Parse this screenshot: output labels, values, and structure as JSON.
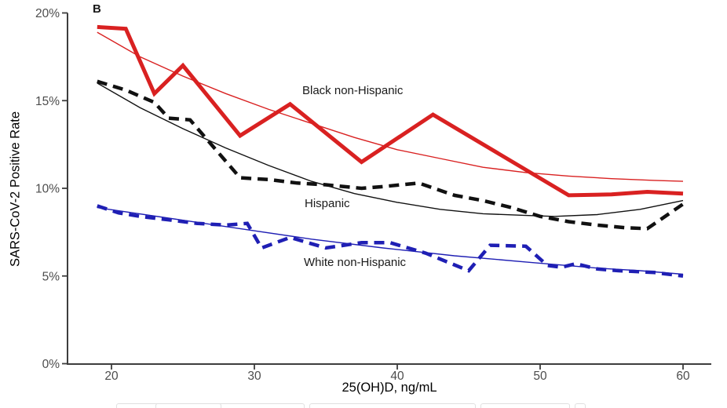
{
  "figure": {
    "panel_label": "B"
  },
  "chart_data": {
    "type": "line",
    "title": "",
    "xlabel": "25(OH)D, ng/mL",
    "ylabel": "SARS-CoV-2 Positive Rate",
    "xlim": [
      17,
      62
    ],
    "ylim": [
      0,
      20
    ],
    "grid": "off",
    "legend_position": "inline-annotations",
    "x_ticks": [
      {
        "value": 20,
        "label": "20"
      },
      {
        "value": 30,
        "label": "30"
      },
      {
        "value": 40,
        "label": "40"
      },
      {
        "value": 50,
        "label": "50"
      },
      {
        "value": 60,
        "label": "60"
      }
    ],
    "y_ticks": [
      {
        "value": 0,
        "label": "0%"
      },
      {
        "value": 5,
        "label": "5%"
      },
      {
        "value": 10,
        "label": "10%"
      },
      {
        "value": 15,
        "label": "15%"
      },
      {
        "value": 20,
        "label": "20%"
      }
    ],
    "annotations": [
      {
        "text": "Black non-Hispanic",
        "color": "#1a1a1a"
      },
      {
        "text": "Hispanic",
        "color": "#1a1a1a"
      },
      {
        "text": "White non-Hispanic",
        "color": "#1a1a1a"
      }
    ],
    "series": [
      {
        "id": "black-non-hispanic",
        "name": "Black non-Hispanic",
        "role": "data",
        "color": "#d92121",
        "line_style": "solid",
        "points": [
          [
            19,
            19.2
          ],
          [
            21,
            19.1
          ],
          [
            23,
            15.4
          ],
          [
            25,
            17.0
          ],
          [
            29,
            13.0
          ],
          [
            32.5,
            14.8
          ],
          [
            37.5,
            11.5
          ],
          [
            42.5,
            14.2
          ],
          [
            52,
            9.6
          ],
          [
            55,
            9.65
          ],
          [
            57.5,
            9.8
          ],
          [
            60,
            9.7
          ]
        ]
      },
      {
        "id": "black-non-hispanic-trend",
        "name": "Black non-Hispanic trend",
        "role": "trend",
        "color": "#d92121",
        "line_style": "solid",
        "points": [
          [
            19,
            18.9
          ],
          [
            22,
            17.5
          ],
          [
            25,
            16.4
          ],
          [
            28,
            15.4
          ],
          [
            31,
            14.5
          ],
          [
            34,
            13.7
          ],
          [
            37,
            12.9
          ],
          [
            40,
            12.2
          ],
          [
            43,
            11.7
          ],
          [
            46,
            11.2
          ],
          [
            49,
            10.9
          ],
          [
            52,
            10.7
          ],
          [
            55,
            10.55
          ],
          [
            58,
            10.45
          ],
          [
            60,
            10.4
          ]
        ]
      },
      {
        "id": "hispanic",
        "name": "Hispanic",
        "role": "data",
        "color": "#111111",
        "line_style": "dashed",
        "points": [
          [
            19,
            16.1
          ],
          [
            21,
            15.6
          ],
          [
            23,
            14.9
          ],
          [
            24,
            14.0
          ],
          [
            25.5,
            13.9
          ],
          [
            29,
            10.6
          ],
          [
            31,
            10.5
          ],
          [
            33,
            10.3
          ],
          [
            35,
            10.2
          ],
          [
            37.5,
            10.0
          ],
          [
            39,
            10.1
          ],
          [
            41.5,
            10.3
          ],
          [
            44,
            9.6
          ],
          [
            46,
            9.3
          ],
          [
            48,
            8.9
          ],
          [
            50,
            8.4
          ],
          [
            52,
            8.1
          ],
          [
            54,
            7.9
          ],
          [
            56,
            7.75
          ],
          [
            57.5,
            7.7
          ],
          [
            60,
            9.1
          ]
        ]
      },
      {
        "id": "hispanic-trend",
        "name": "Hispanic trend",
        "role": "trend",
        "color": "#111111",
        "line_style": "solid",
        "points": [
          [
            19,
            16.0
          ],
          [
            22,
            14.6
          ],
          [
            25,
            13.4
          ],
          [
            28,
            12.3
          ],
          [
            31,
            11.3
          ],
          [
            34,
            10.4
          ],
          [
            37,
            9.7
          ],
          [
            40,
            9.2
          ],
          [
            43,
            8.8
          ],
          [
            46,
            8.55
          ],
          [
            49,
            8.45
          ],
          [
            51,
            8.4
          ],
          [
            54,
            8.5
          ],
          [
            57,
            8.8
          ],
          [
            60,
            9.3
          ]
        ]
      },
      {
        "id": "white-non-hispanic",
        "name": "White non-Hispanic",
        "role": "data",
        "color": "#1f1fb4",
        "line_style": "dashed",
        "points": [
          [
            19,
            9.0
          ],
          [
            20.5,
            8.6
          ],
          [
            22,
            8.4
          ],
          [
            24,
            8.2
          ],
          [
            26,
            8.0
          ],
          [
            28,
            7.9
          ],
          [
            29.5,
            8.0
          ],
          [
            30.5,
            6.6
          ],
          [
            32.5,
            7.2
          ],
          [
            35,
            6.6
          ],
          [
            37.5,
            6.9
          ],
          [
            39.5,
            6.9
          ],
          [
            42,
            6.3
          ],
          [
            45,
            5.3
          ],
          [
            46.5,
            6.75
          ],
          [
            49,
            6.7
          ],
          [
            50.5,
            5.6
          ],
          [
            51.5,
            5.5
          ],
          [
            52.5,
            5.7
          ],
          [
            54,
            5.4
          ],
          [
            55.5,
            5.3
          ],
          [
            58,
            5.2
          ],
          [
            60,
            5.0
          ]
        ]
      },
      {
        "id": "white-non-hispanic-trend",
        "name": "White non-Hispanic trend",
        "role": "trend",
        "color": "#1f1fb4",
        "line_style": "solid",
        "points": [
          [
            19,
            8.9
          ],
          [
            24,
            8.3
          ],
          [
            29,
            7.7
          ],
          [
            34,
            7.1
          ],
          [
            39,
            6.6
          ],
          [
            44,
            6.15
          ],
          [
            49,
            5.8
          ],
          [
            54,
            5.45
          ],
          [
            57,
            5.3
          ],
          [
            60,
            5.1
          ]
        ]
      }
    ]
  }
}
